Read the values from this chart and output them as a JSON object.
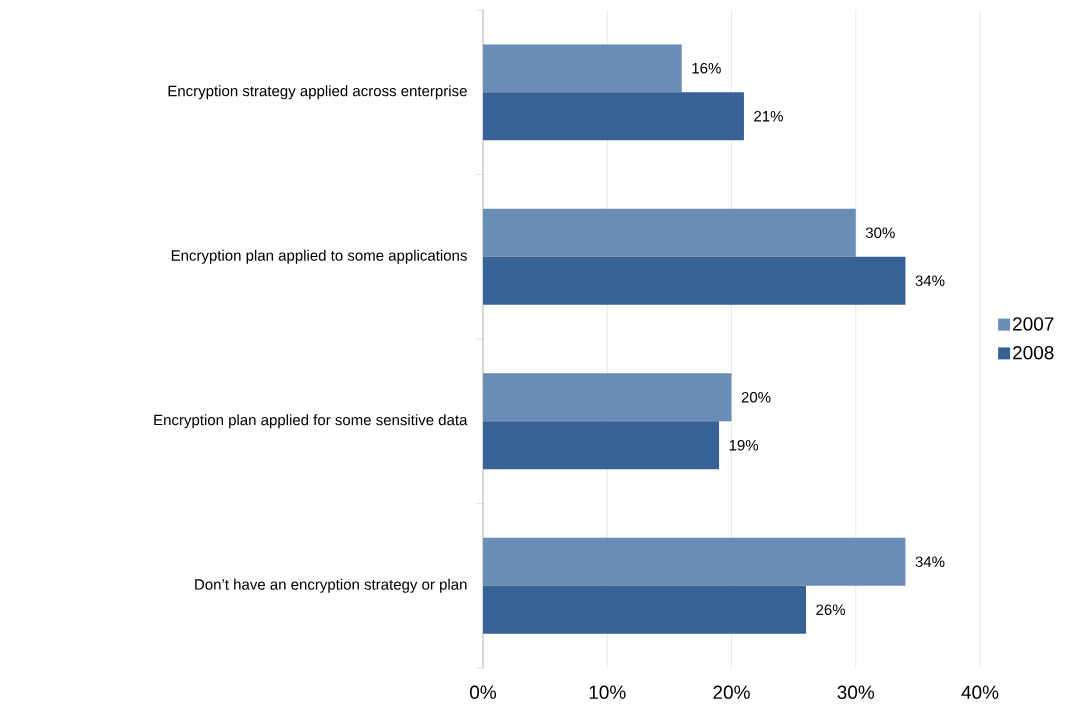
{
  "chart_data": {
    "type": "bar",
    "orientation": "horizontal",
    "categories": [
      "Encryption strategy applied across enterprise",
      "Encryption plan applied to some applications",
      "Encryption plan applied for some sensitive data",
      "Don’t have an encryption strategy or plan"
    ],
    "series": [
      {
        "name": "2007",
        "color": "#6a8db5",
        "values": [
          16,
          30,
          20,
          34
        ],
        "value_labels": [
          "16%",
          "30%",
          "20%",
          "34%"
        ]
      },
      {
        "name": "2008",
        "color": "#386195",
        "values": [
          21,
          34,
          19,
          26
        ],
        "value_labels": [
          "21%",
          "34%",
          "19%",
          "26%"
        ]
      }
    ],
    "xlim": [
      0,
      40
    ],
    "xticks": [
      {
        "value": 0,
        "label": "0%"
      },
      {
        "value": 10,
        "label": "10%"
      },
      {
        "value": 20,
        "label": "20%"
      },
      {
        "value": 30,
        "label": "30%"
      },
      {
        "value": 40,
        "label": "40%"
      }
    ],
    "grid": "x",
    "legend": "right"
  }
}
